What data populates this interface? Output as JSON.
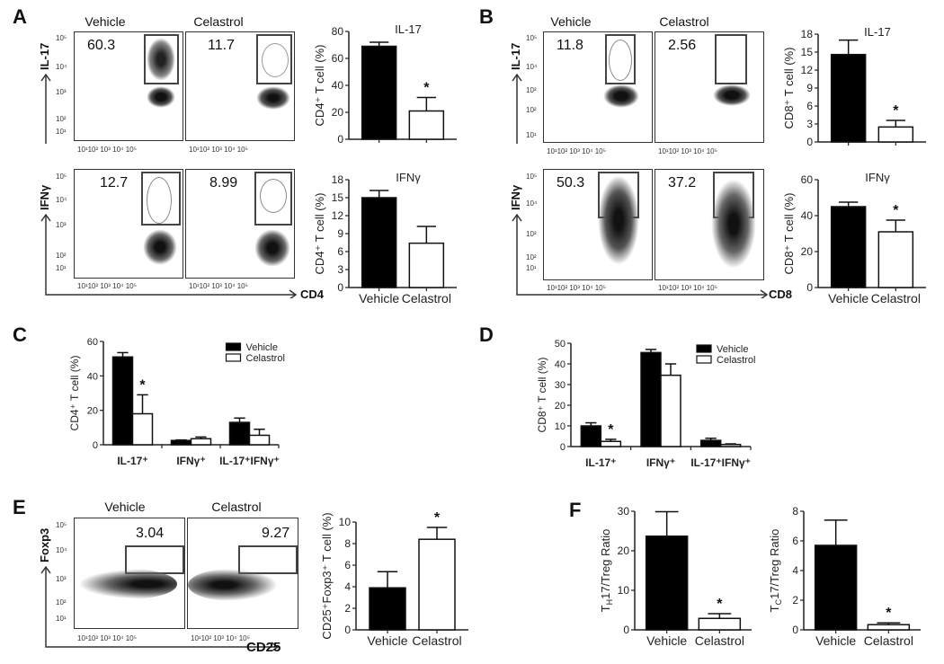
{
  "panels": {
    "A": {
      "letter": "A"
    },
    "B": {
      "letter": "B"
    },
    "C": {
      "letter": "C"
    },
    "D": {
      "letter": "D"
    },
    "E": {
      "letter": "E"
    },
    "F": {
      "letter": "F"
    }
  },
  "flow": {
    "group_labels": [
      "Vehicle",
      "Celastrol"
    ],
    "x_ticks": "10¹10²   10³   10⁴   10⁵",
    "y_ticks": [
      "10⁵",
      "10⁴",
      "10³",
      "10²",
      "10¹"
    ],
    "A": {
      "row1": {
        "y_label": "IL-17",
        "values": [
          "60.3",
          "11.7"
        ]
      },
      "row2": {
        "y_label": "IFNγ",
        "values": [
          "12.7",
          "8.99"
        ]
      },
      "x_label": "CD4"
    },
    "B": {
      "row1": {
        "y_label": "IL-17",
        "values": [
          "11.8",
          "2.56"
        ]
      },
      "row2": {
        "y_label": "IFNγ",
        "values": [
          "50.3",
          "37.2"
        ]
      },
      "x_label": "CD8"
    },
    "E": {
      "row1": {
        "y_label": "Foxp3",
        "values": [
          "3.04",
          "9.27"
        ]
      },
      "x_label": "CD25"
    }
  },
  "chart_data": [
    {
      "id": "A-IL17",
      "type": "bar",
      "title": "IL-17",
      "ylabel": "CD4⁺ T cell (%)",
      "categories": [
        "Vehicle",
        "Celastrol"
      ],
      "values": [
        69,
        21
      ],
      "errors": [
        3,
        10
      ],
      "ylim": [
        0,
        80
      ],
      "yticks": [
        0,
        20,
        40,
        60,
        80
      ],
      "significance": [
        false,
        true
      ]
    },
    {
      "id": "A-IFNg",
      "type": "bar",
      "title": "IFNγ",
      "ylabel": "CD4⁺ T cell (%)",
      "categories": [
        "Vehicle",
        "Celastrol"
      ],
      "values": [
        15,
        7.4
      ],
      "errors": [
        1.2,
        2.8
      ],
      "ylim": [
        0,
        18
      ],
      "yticks": [
        0,
        3,
        6,
        9,
        12,
        15,
        18
      ],
      "significance": [
        false,
        false
      ]
    },
    {
      "id": "B-IL17",
      "type": "bar",
      "title": "IL-17",
      "ylabel": "CD8⁺ T cell (%)",
      "categories": [
        "Vehicle",
        "Celastrol"
      ],
      "values": [
        14.6,
        2.5
      ],
      "errors": [
        2.4,
        1.1
      ],
      "ylim": [
        0,
        18
      ],
      "yticks": [
        0,
        3,
        6,
        9,
        12,
        15,
        18
      ],
      "significance": [
        false,
        true
      ]
    },
    {
      "id": "B-IFNg",
      "type": "bar",
      "title": "IFNγ",
      "ylabel": "CD8⁺ T cell (%)",
      "categories": [
        "Vehicle",
        "Celastrol"
      ],
      "values": [
        45,
        31
      ],
      "errors": [
        2.5,
        6.5
      ],
      "ylim": [
        0,
        60
      ],
      "yticks": [
        0,
        20,
        40,
        60
      ],
      "significance": [
        false,
        true
      ]
    },
    {
      "id": "C",
      "type": "bar",
      "title": "",
      "ylabel": "CD4⁺ T cell (%)",
      "categories": [
        "IL-17⁺",
        "IFNγ⁺",
        "IL-17⁺IFNγ⁺"
      ],
      "series": [
        {
          "name": "Vehicle",
          "values": [
            51,
            2.5,
            13
          ],
          "errors": [
            2.5,
            0.3,
            2.5
          ]
        },
        {
          "name": "Celastrol",
          "values": [
            18,
            3.5,
            5.5
          ],
          "errors": [
            11,
            1,
            3.5
          ]
        }
      ],
      "ylim": [
        0,
        60
      ],
      "yticks": [
        0,
        20,
        40,
        60
      ],
      "significance": [
        [
          false,
          true
        ],
        [
          false,
          false
        ],
        [
          false,
          false
        ]
      ],
      "legend_position": "top-right"
    },
    {
      "id": "D",
      "type": "bar",
      "title": "",
      "ylabel": "CD8⁺ T cell (%)",
      "categories": [
        "IL-17⁺",
        "IFNγ⁺",
        "IL-17⁺IFNγ⁺"
      ],
      "series": [
        {
          "name": "Vehicle",
          "values": [
            10,
            45.5,
            3
          ],
          "errors": [
            1.5,
            1.5,
            1
          ]
        },
        {
          "name": "Celastrol",
          "values": [
            2.5,
            34.5,
            1
          ],
          "errors": [
            1,
            5.5,
            0.3
          ]
        }
      ],
      "ylim": [
        0,
        50
      ],
      "yticks": [
        0,
        10,
        20,
        30,
        40,
        50
      ],
      "significance": [
        [
          false,
          true
        ],
        [
          false,
          false
        ],
        [
          false,
          false
        ]
      ],
      "legend_position": "top-right"
    },
    {
      "id": "E",
      "type": "bar",
      "title": "",
      "ylabel": "CD25⁺Foxp3⁺ T cell (%)",
      "categories": [
        "Vehicle",
        "Celastrol"
      ],
      "values": [
        3.9,
        8.4
      ],
      "errors": [
        1.5,
        1.1
      ],
      "ylim": [
        0,
        10
      ],
      "yticks": [
        0,
        2,
        4,
        6,
        8,
        10
      ],
      "significance": [
        false,
        true
      ]
    },
    {
      "id": "F-TH17",
      "type": "bar",
      "title": "",
      "ylabel": "T_H17/Treg Ratio",
      "categories": [
        "Vehicle",
        "Celastrol"
      ],
      "values": [
        23.7,
        2.9
      ],
      "errors": [
        6.2,
        1.2
      ],
      "ylim": [
        0,
        30
      ],
      "yticks": [
        0,
        10,
        20,
        30
      ],
      "significance": [
        false,
        true
      ]
    },
    {
      "id": "F-TC17",
      "type": "bar",
      "title": "",
      "ylabel": "T_C17/Treg Ratio",
      "categories": [
        "Vehicle",
        "Celastrol"
      ],
      "values": [
        5.7,
        0.35
      ],
      "errors": [
        1.7,
        0.12
      ],
      "ylim": [
        0,
        8
      ],
      "yticks": [
        0,
        2,
        4,
        6,
        8
      ],
      "significance": [
        false,
        true
      ]
    }
  ],
  "legend": {
    "vehicle": "Vehicle",
    "celastrol": "Celastrol"
  },
  "colors": {
    "vehicle": "#000000",
    "celastrol": "#ffffff",
    "axis": "#222222"
  }
}
